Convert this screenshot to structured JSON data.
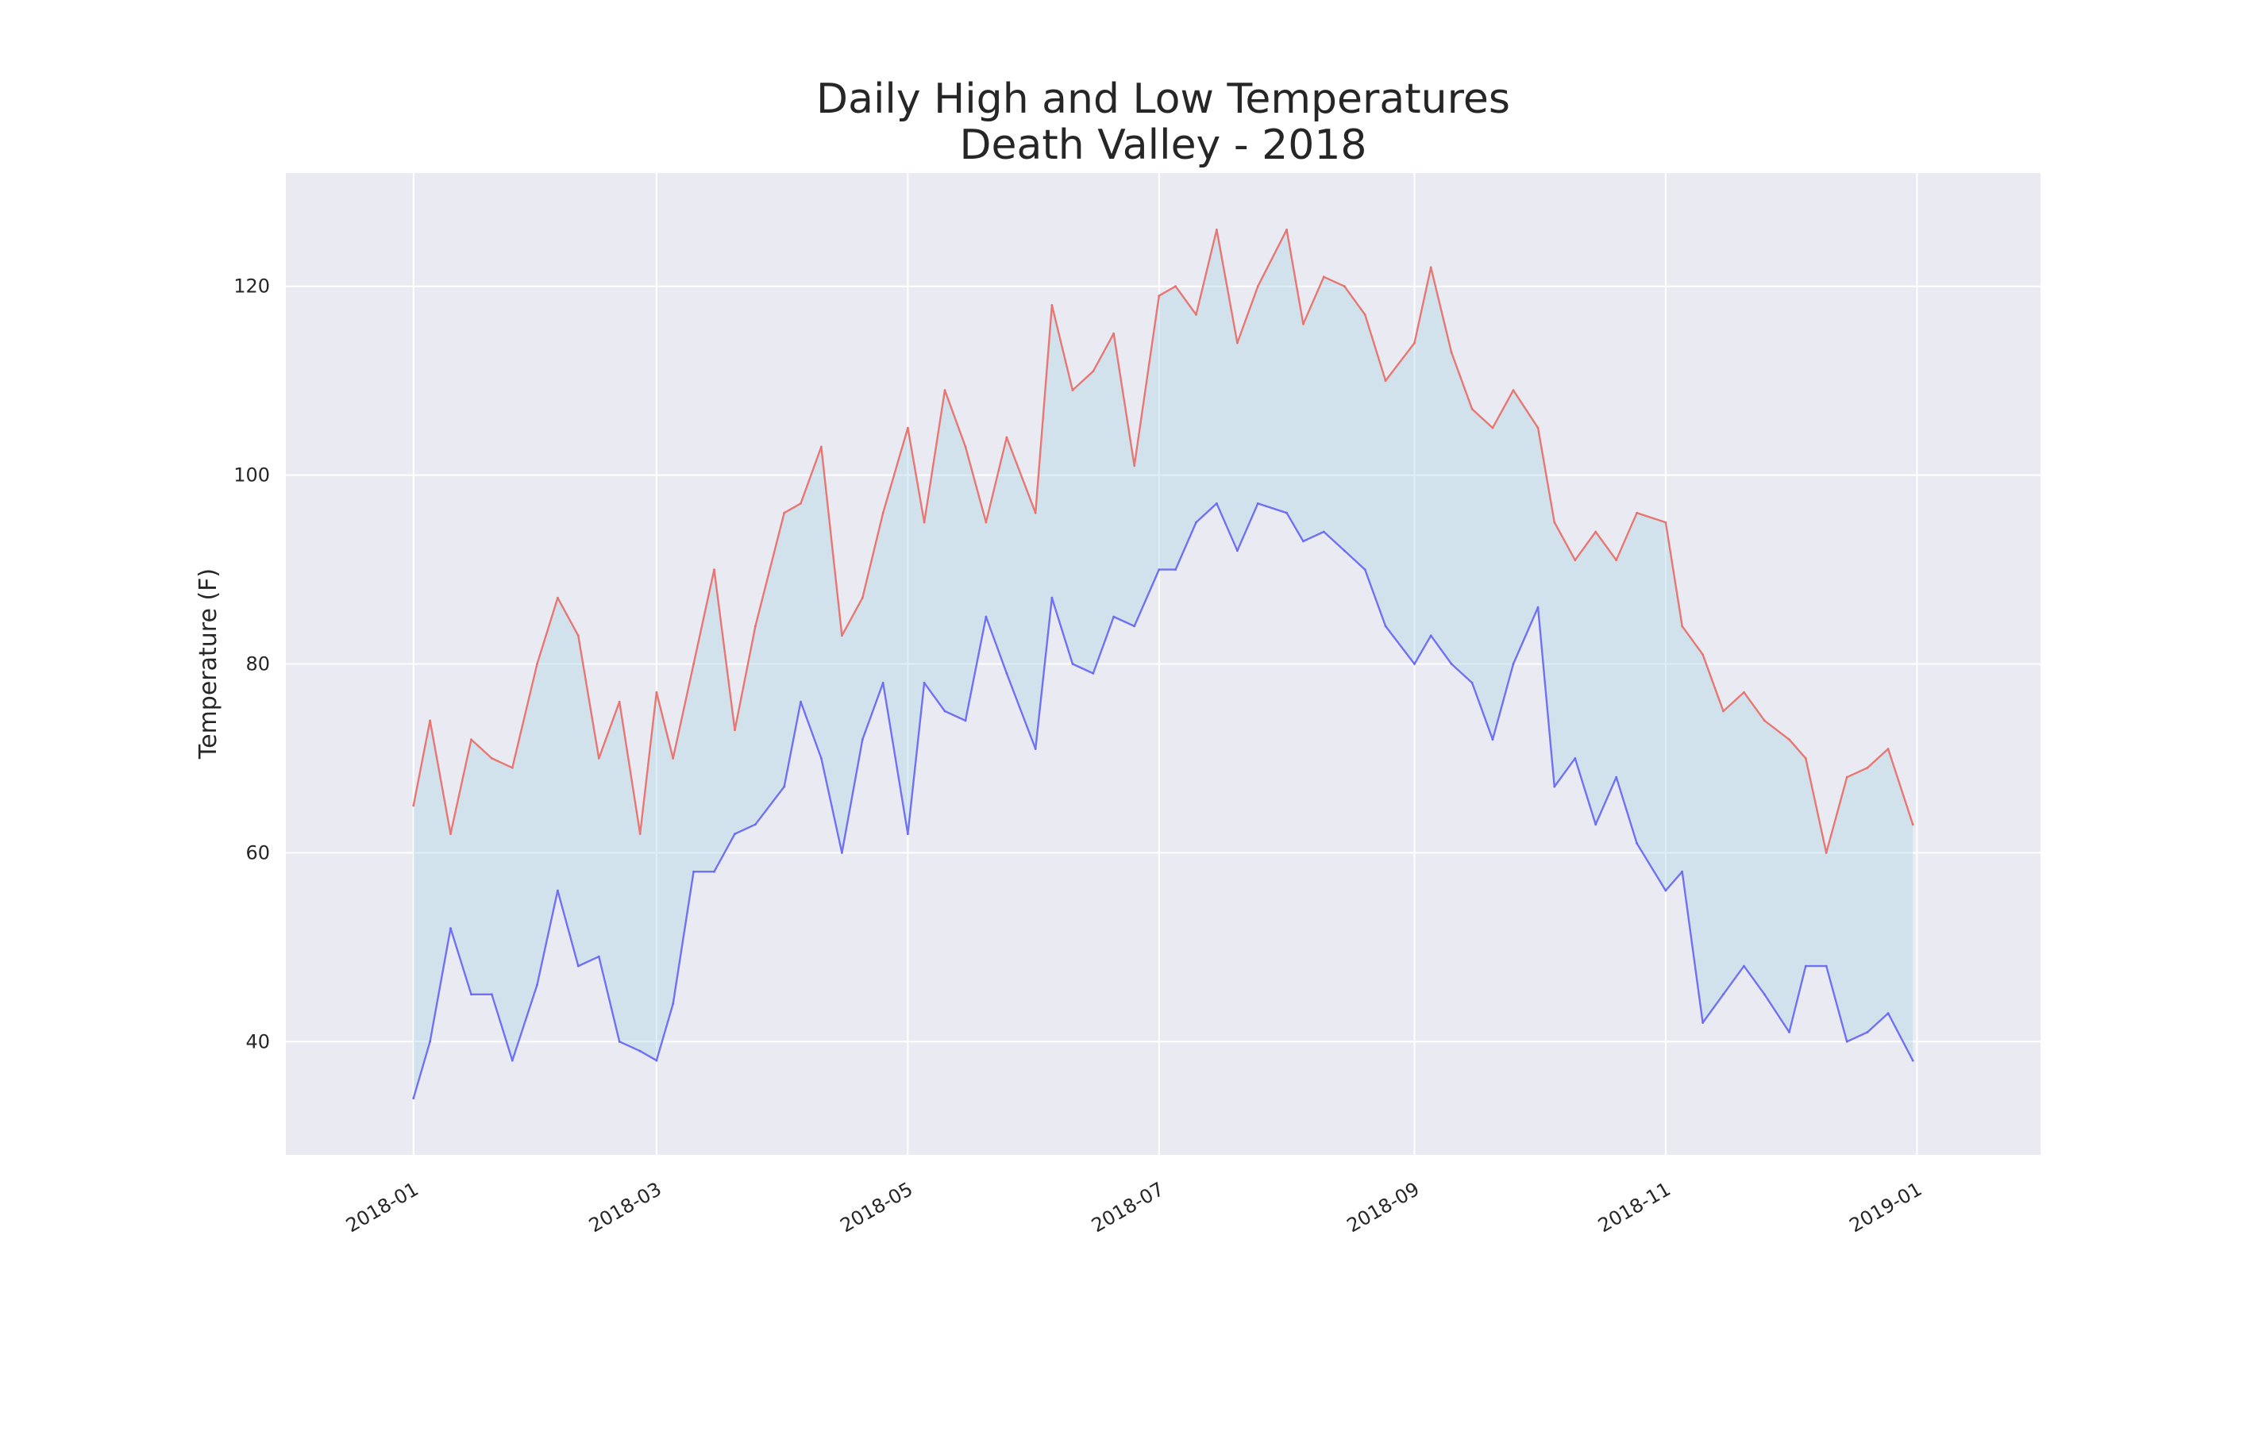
{
  "chart_data": {
    "type": "line",
    "title": "Daily High and Low Temperatures",
    "subtitle": "Death Valley - 2018",
    "xlabel": "",
    "ylabel": "Temperature (F)",
    "xlim": [
      "2017-12-01",
      "2019-01-31"
    ],
    "ylim": [
      28,
      132
    ],
    "grid": true,
    "legend": "none",
    "x_tick_labels": [
      "2018-01",
      "2018-03",
      "2018-05",
      "2018-07",
      "2018-09",
      "2018-11",
      "2019-01"
    ],
    "y_tick_labels": [
      "40",
      "60",
      "80",
      "100",
      "120"
    ],
    "fill_between": {
      "color": "#add8e6",
      "alpha": 0.4
    },
    "series": [
      {
        "role": "high",
        "color": "#e8716b",
        "x": [
          "2018-01-01",
          "2018-01-05",
          "2018-01-10",
          "2018-01-15",
          "2018-01-20",
          "2018-01-25",
          "2018-01-31",
          "2018-02-05",
          "2018-02-10",
          "2018-02-15",
          "2018-02-20",
          "2018-02-25",
          "2018-03-01",
          "2018-03-05",
          "2018-03-10",
          "2018-03-15",
          "2018-03-20",
          "2018-03-25",
          "2018-04-01",
          "2018-04-05",
          "2018-04-10",
          "2018-04-15",
          "2018-04-20",
          "2018-04-25",
          "2018-05-01",
          "2018-05-05",
          "2018-05-10",
          "2018-05-15",
          "2018-05-20",
          "2018-05-25",
          "2018-06-01",
          "2018-06-05",
          "2018-06-10",
          "2018-06-15",
          "2018-06-20",
          "2018-06-25",
          "2018-07-01",
          "2018-07-05",
          "2018-07-10",
          "2018-07-15",
          "2018-07-20",
          "2018-07-25",
          "2018-08-01",
          "2018-08-05",
          "2018-08-10",
          "2018-08-15",
          "2018-08-20",
          "2018-08-25",
          "2018-09-01",
          "2018-09-05",
          "2018-09-10",
          "2018-09-15",
          "2018-09-20",
          "2018-09-25",
          "2018-10-01",
          "2018-10-05",
          "2018-10-10",
          "2018-10-15",
          "2018-10-20",
          "2018-10-25",
          "2018-11-01",
          "2018-11-05",
          "2018-11-10",
          "2018-11-15",
          "2018-11-20",
          "2018-11-25",
          "2018-12-01",
          "2018-12-05",
          "2018-12-10",
          "2018-12-15",
          "2018-12-20",
          "2018-12-25",
          "2018-12-31"
        ],
        "values": [
          65,
          74,
          62,
          72,
          70,
          69,
          80,
          87,
          83,
          70,
          76,
          62,
          77,
          70,
          80,
          90,
          73,
          84,
          96,
          97,
          103,
          83,
          87,
          96,
          105,
          95,
          109,
          103,
          95,
          104,
          96,
          118,
          109,
          111,
          115,
          101,
          119,
          120,
          117,
          126,
          114,
          120,
          126,
          116,
          121,
          120,
          117,
          110,
          114,
          122,
          113,
          107,
          105,
          109,
          105,
          95,
          91,
          94,
          91,
          96,
          95,
          84,
          81,
          75,
          77,
          74,
          72,
          70,
          60,
          68,
          69,
          71,
          63
        ]
      },
      {
        "role": "low",
        "color": "#6a6af2",
        "x": [
          "2018-01-01",
          "2018-01-05",
          "2018-01-10",
          "2018-01-15",
          "2018-01-20",
          "2018-01-25",
          "2018-01-31",
          "2018-02-05",
          "2018-02-10",
          "2018-02-15",
          "2018-02-20",
          "2018-02-25",
          "2018-03-01",
          "2018-03-05",
          "2018-03-10",
          "2018-03-15",
          "2018-03-20",
          "2018-03-25",
          "2018-04-01",
          "2018-04-05",
          "2018-04-10",
          "2018-04-15",
          "2018-04-20",
          "2018-04-25",
          "2018-05-01",
          "2018-05-05",
          "2018-05-10",
          "2018-05-15",
          "2018-05-20",
          "2018-05-25",
          "2018-06-01",
          "2018-06-05",
          "2018-06-10",
          "2018-06-15",
          "2018-06-20",
          "2018-06-25",
          "2018-07-01",
          "2018-07-05",
          "2018-07-10",
          "2018-07-15",
          "2018-07-20",
          "2018-07-25",
          "2018-08-01",
          "2018-08-05",
          "2018-08-10",
          "2018-08-15",
          "2018-08-20",
          "2018-08-25",
          "2018-09-01",
          "2018-09-05",
          "2018-09-10",
          "2018-09-15",
          "2018-09-20",
          "2018-09-25",
          "2018-10-01",
          "2018-10-05",
          "2018-10-10",
          "2018-10-15",
          "2018-10-20",
          "2018-10-25",
          "2018-11-01",
          "2018-11-05",
          "2018-11-10",
          "2018-11-15",
          "2018-11-20",
          "2018-11-25",
          "2018-12-01",
          "2018-12-05",
          "2018-12-10",
          "2018-12-15",
          "2018-12-20",
          "2018-12-25",
          "2018-12-31"
        ],
        "values": [
          34,
          40,
          52,
          45,
          45,
          38,
          46,
          56,
          48,
          49,
          40,
          39,
          38,
          44,
          58,
          58,
          62,
          63,
          67,
          76,
          70,
          60,
          72,
          78,
          62,
          78,
          75,
          74,
          85,
          79,
          71,
          87,
          80,
          79,
          85,
          84,
          90,
          90,
          95,
          97,
          92,
          97,
          96,
          93,
          94,
          92,
          90,
          84,
          80,
          83,
          80,
          78,
          72,
          80,
          86,
          67,
          70,
          63,
          68,
          61,
          56,
          58,
          42,
          45,
          48,
          45,
          41,
          48,
          48,
          40,
          41,
          43,
          38
        ]
      }
    ]
  }
}
